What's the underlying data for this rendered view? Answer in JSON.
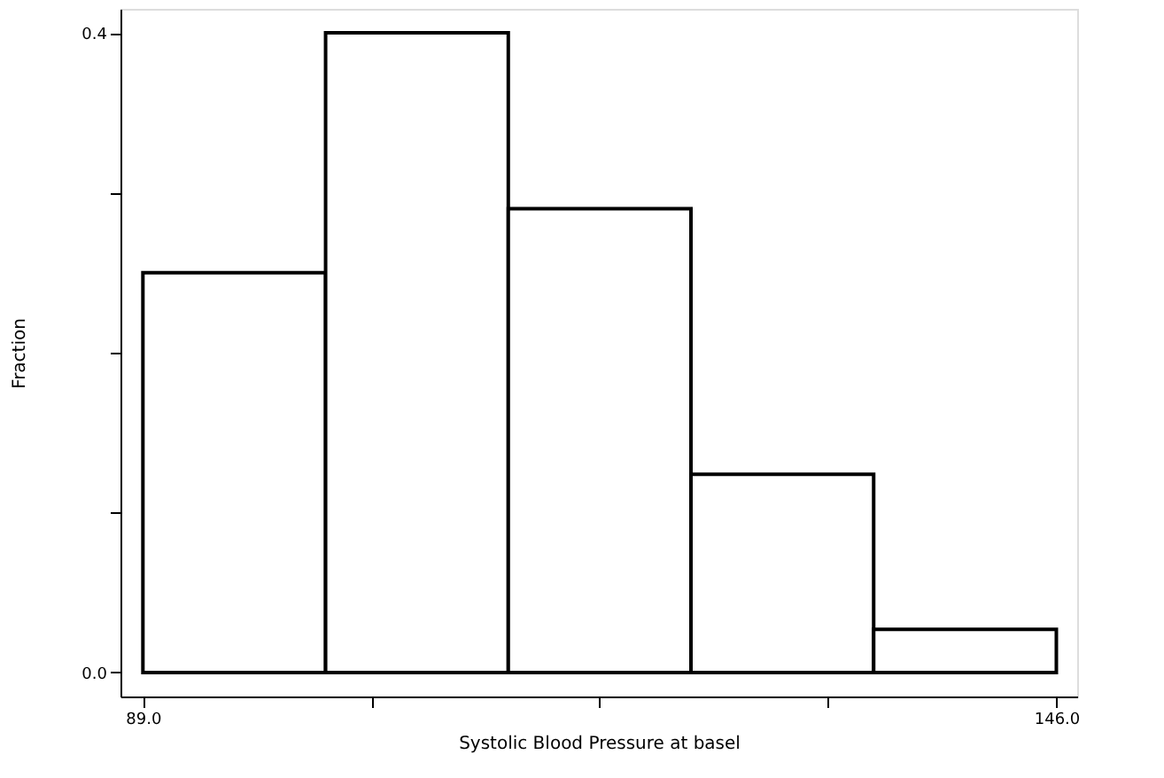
{
  "chart_data": {
    "type": "histogram",
    "xlabel": "Systolic Blood Pressure at basel",
    "ylabel": "Fraction",
    "bins": [
      89.0,
      100.4,
      111.8,
      123.2,
      134.6,
      146.0
    ],
    "values": [
      0.25,
      0.4,
      0.29,
      0.124,
      0.027
    ],
    "color": "#ffffff",
    "xlim": [
      87.6,
      147.3
    ],
    "xticks": [
      {
        "value": 89,
        "label": "89.0"
      },
      {
        "value": 103.25,
        "label": null
      },
      {
        "value": 117.5,
        "label": null
      },
      {
        "value": 131.75,
        "label": null
      },
      {
        "value": 146,
        "label": "146.0"
      }
    ],
    "ylim": [
      -0.015,
      0.415
    ],
    "yticks": [
      {
        "value": 0,
        "label": "0.0"
      },
      {
        "value": 0.1,
        "label": null
      },
      {
        "value": 0.2,
        "label": null
      },
      {
        "value": 0.3,
        "label": null
      },
      {
        "value": 0.4,
        "label": "0.4"
      }
    ],
    "grid": false
  }
}
